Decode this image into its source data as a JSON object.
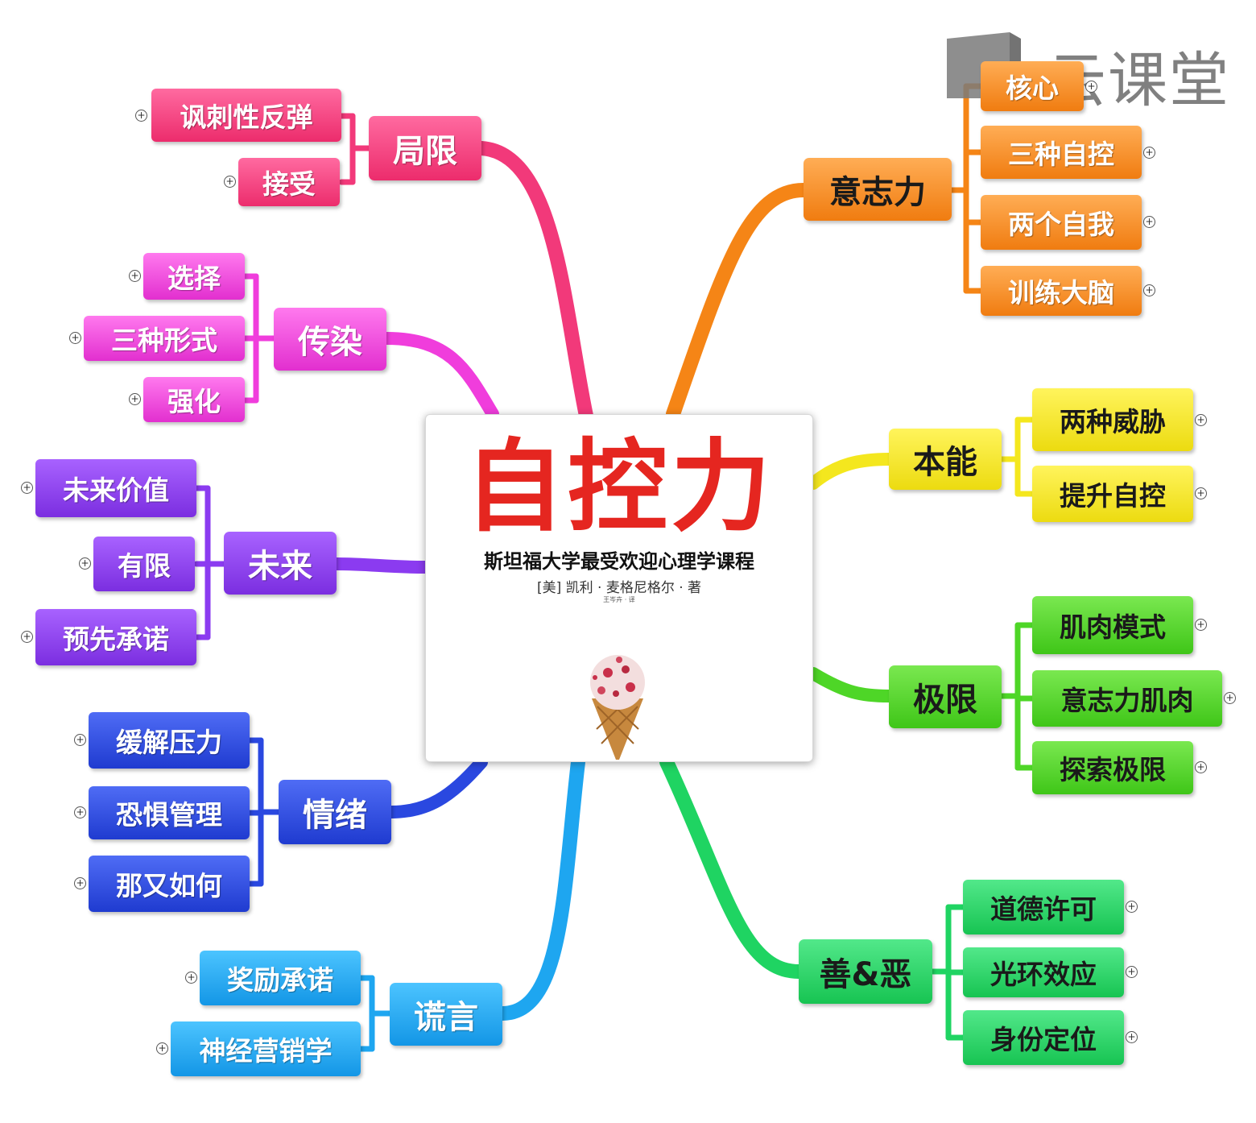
{
  "center": {
    "title": "自控力",
    "subtitle": "斯坦福大学最受欢迎心理学课程",
    "author": "[美] 凯利 · 麦格尼格尔 · 著",
    "translator": "王岑卉 · 译"
  },
  "watermark": {
    "text": "云课堂"
  },
  "branches": {
    "jx": {
      "label": "局限",
      "color": "#f2397a",
      "children": [
        "讽刺性反弹",
        "接受"
      ]
    },
    "cr": {
      "label": "传染",
      "color": "#f03ddc",
      "children": [
        "选择",
        "三种形式",
        "强化"
      ]
    },
    "wl": {
      "label": "未来",
      "color": "#8b3bf0",
      "children": [
        "未来价值",
        "有限",
        "预先承诺"
      ]
    },
    "qx": {
      "label": "情绪",
      "color": "#2a48e0",
      "children": [
        "缓解压力",
        "恐惧管理",
        "那又如何"
      ]
    },
    "hy": {
      "label": "谎言",
      "color": "#1ea6f0",
      "children": [
        "奖励承诺",
        "神经营销学"
      ]
    },
    "yzl": {
      "label": "意志力",
      "color": "#f58516",
      "children": [
        "核心",
        "三种自控",
        "两个自我",
        "训练大脑"
      ]
    },
    "bn": {
      "label": "本能",
      "color": "#f4e71e",
      "children": [
        "两种威胁",
        "提升自控"
      ]
    },
    "jxl": {
      "label": "极限",
      "color": "#4ed627",
      "children": [
        "肌肉模式",
        "意志力肌肉",
        "探索极限"
      ]
    },
    "se": {
      "label": "善&恶",
      "color": "#1fd462",
      "children": [
        "道德许可",
        "光环效应",
        "身份定位"
      ]
    }
  }
}
